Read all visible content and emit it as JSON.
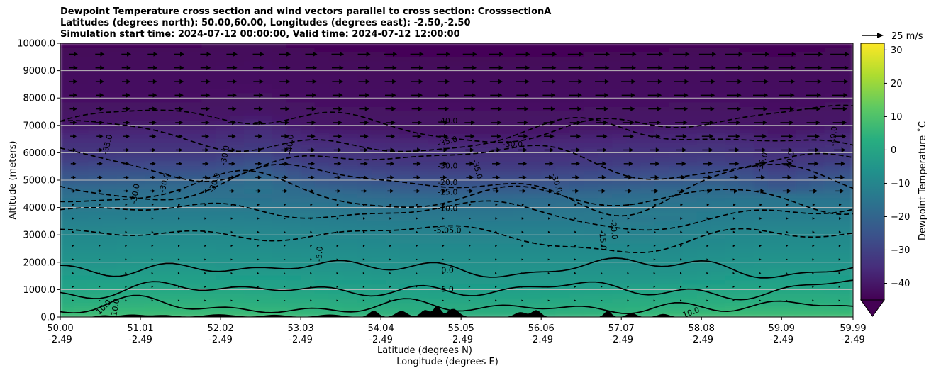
{
  "title": {
    "line1": "Dewpoint Temperature cross section and wind vectors parallel to cross section: CrosssectionA",
    "line2": "Latitudes (degrees north): 50.00,60.00, Longitudes (degrees east): -2.50,-2.50",
    "line3": "Simulation start time: 2024-07-12 00:00:00, Valid time: 2024-07-12 12:00:00"
  },
  "chart_data": {
    "type": "heatmap",
    "title": "Dewpoint Temperature cross section and wind vectors parallel to cross section: CrosssectionA",
    "ylabel": "Altitude (meters)",
    "xlabel_line1": "Latitude (degrees N)",
    "xlabel_line2": "Longitude (degrees E)",
    "ylim": [
      0,
      10000
    ],
    "xlim": [
      50.0,
      59.99
    ],
    "y_ticks": [
      0,
      1000,
      2000,
      3000,
      4000,
      5000,
      6000,
      7000,
      8000,
      9000,
      10000
    ],
    "y_tick_labels": [
      "0.0",
      "1000.0",
      "2000.0",
      "3000.0",
      "4000.0",
      "5000.0",
      "6000.0",
      "7000.0",
      "8000.0",
      "9000.0",
      "10000.0"
    ],
    "x_ticks": [
      50.0,
      51.01,
      52.02,
      53.03,
      54.04,
      55.05,
      56.06,
      57.07,
      58.08,
      59.09,
      59.99
    ],
    "x_tick_labels_lat": [
      "50.00",
      "51.01",
      "52.02",
      "53.03",
      "54.04",
      "55.05",
      "56.06",
      "57.07",
      "58.08",
      "59.09",
      "59.99"
    ],
    "x_tick_labels_lon": [
      "-2.49",
      "-2.49",
      "-2.49",
      "-2.49",
      "-2.49",
      "-2.49",
      "-2.49",
      "-2.49",
      "-2.49",
      "-2.49",
      "-2.49"
    ],
    "colorbar": {
      "label": "Dewpoint Temperature ˚C",
      "range": [
        -45,
        32
      ],
      "extend": "min",
      "ticks": [
        -40,
        -30,
        -20,
        -10,
        0,
        10,
        20,
        30
      ],
      "tick_labels": [
        "−40",
        "−30",
        "−20",
        "−10",
        "0",
        "10",
        "20",
        "30"
      ]
    },
    "reference_vector": {
      "label": "25 m/s"
    },
    "contour_levels": [
      {
        "value": -40,
        "altitude_m": 7050,
        "style": "dashed"
      },
      {
        "value": -35,
        "altitude_m": 6500,
        "style": "dashed"
      },
      {
        "value": -30,
        "altitude_m": 5700,
        "style": "dashed"
      },
      {
        "value": -20,
        "altitude_m": 4900,
        "style": "dashed"
      },
      {
        "value": -15,
        "altitude_m": 4550,
        "style": "dashed"
      },
      {
        "value": -10,
        "altitude_m": 3900,
        "style": "dashed"
      },
      {
        "value": -5,
        "altitude_m": 3050,
        "style": "dashed"
      },
      {
        "value": 0,
        "altitude_m": 1800,
        "style": "solid"
      },
      {
        "value": 5,
        "altitude_m": 1000,
        "style": "solid"
      },
      {
        "value": 10,
        "altitude_m": 350,
        "style": "solid"
      }
    ],
    "contour_labels": [
      {
        "text": "-40.0",
        "lat": 54.88,
        "alt": 7150,
        "rot": 0
      },
      {
        "text": "-35.0",
        "lat": 54.88,
        "alt": 6400,
        "rot": -15
      },
      {
        "text": "-30.0",
        "lat": 55.7,
        "alt": 6300,
        "rot": 0
      },
      {
        "text": "-30.0",
        "lat": 54.88,
        "alt": 5500,
        "rot": 0
      },
      {
        "text": "-35.0",
        "lat": 55.25,
        "alt": 5400,
        "rot": 75
      },
      {
        "text": "-20.0",
        "lat": 54.88,
        "alt": 4900,
        "rot": 0
      },
      {
        "text": "-15.0",
        "lat": 54.88,
        "alt": 4550,
        "rot": 0
      },
      {
        "text": "-10.0",
        "lat": 54.88,
        "alt": 3950,
        "rot": 0
      },
      {
        "text": "-5.05.0",
        "lat": 54.88,
        "alt": 3150,
        "rot": 0
      },
      {
        "text": "0.0",
        "lat": 54.88,
        "alt": 1700,
        "rot": 0
      },
      {
        "text": "5.0",
        "lat": 54.88,
        "alt": 1000,
        "rot": 0
      },
      {
        "text": "-35.0",
        "lat": 50.6,
        "alt": 6300,
        "rot": -75
      },
      {
        "text": "-30.0",
        "lat": 52.08,
        "alt": 5900,
        "rot": -80
      },
      {
        "text": "-30.0",
        "lat": 51.95,
        "alt": 4900,
        "rot": -70
      },
      {
        "text": "-30.0",
        "lat": 51.32,
        "alt": 4900,
        "rot": -75
      },
      {
        "text": "-30.0",
        "lat": 50.95,
        "alt": 4500,
        "rot": -80
      },
      {
        "text": "-40.0",
        "lat": 52.9,
        "alt": 6300,
        "rot": -85
      },
      {
        "text": "-30.0",
        "lat": 56.25,
        "alt": 4900,
        "rot": 70
      },
      {
        "text": "-20.0",
        "lat": 56.97,
        "alt": 3200,
        "rot": 85
      },
      {
        "text": "-15.0",
        "lat": 56.83,
        "alt": 2800,
        "rot": 85
      },
      {
        "text": "-5.0",
        "lat": 53.27,
        "alt": 2300,
        "rot": -85
      },
      {
        "text": "-40.0",
        "lat": 59.2,
        "alt": 5700,
        "rot": -80
      },
      {
        "text": "-35.0",
        "lat": 58.85,
        "alt": 5650,
        "rot": -70
      },
      {
        "text": "-40.0",
        "lat": 59.75,
        "alt": 6600,
        "rot": -85
      },
      {
        "text": "10.0",
        "lat": 50.55,
        "alt": 350,
        "rot": -45
      },
      {
        "text": "10.0",
        "lat": 50.7,
        "alt": 350,
        "rot": -80
      },
      {
        "text": "10.0",
        "lat": 57.95,
        "alt": 150,
        "rot": -20
      }
    ],
    "wind": {
      "upper_speed_max_ms": 25,
      "direction": "toward increasing latitude"
    }
  }
}
